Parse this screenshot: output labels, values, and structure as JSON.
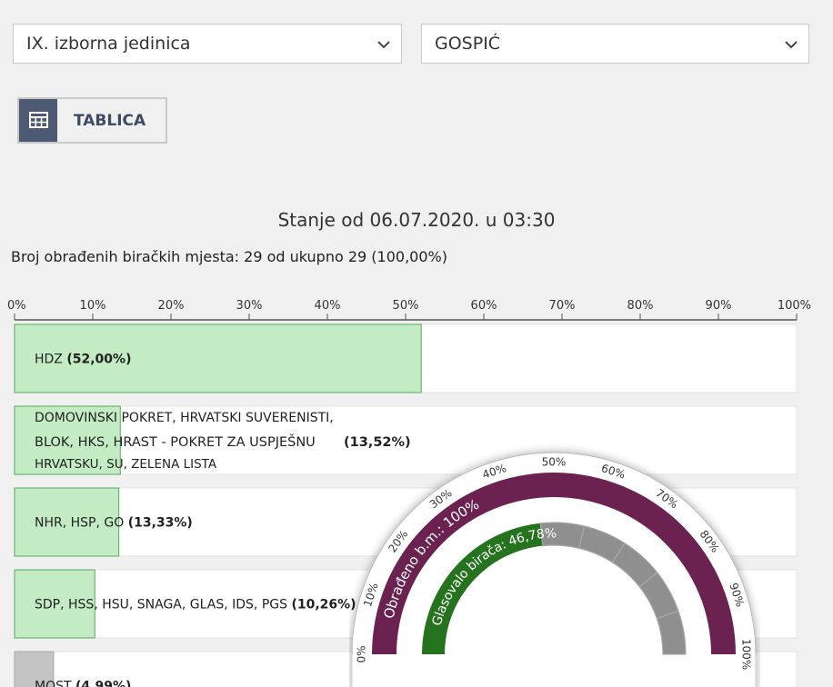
{
  "filters": {
    "constituency": "IX. izborna jedinica",
    "municipality": "GOSPIĆ"
  },
  "toolbar": {
    "table_label": "TABLICA"
  },
  "status_text": "Stanje od 06.07.2020. u 03:30",
  "processed_text": "Broj obrađenih biračkih mjesta: 29 od ukupno 29 (100,00%)",
  "chart_data": [
    {
      "type": "bar",
      "orientation": "horizontal",
      "xlim": [
        0,
        100
      ],
      "ticks": [
        "0%",
        "10%",
        "20%",
        "30%",
        "40%",
        "50%",
        "60%",
        "70%",
        "80%",
        "90%",
        "100%"
      ],
      "bar_color": "#c3ebc4",
      "other_color": "#c4c4c4",
      "bars": [
        {
          "lines": [
            "HDZ"
          ],
          "pct_label": "(52,00%)",
          "value": 52.0
        },
        {
          "lines": [
            "DOMOVINSKI POKRET, HRVATSKI SUVERENISTI,",
            "BLOK, HKS, HRAST - POKRET ZA USPJEŠNU",
            "HRVATSKU, SU, ZELENA LISTA"
          ],
          "pct_label": "(13,52%)",
          "value": 13.52
        },
        {
          "lines": [
            "NHR, HSP, GO"
          ],
          "pct_label": "(13,33%)",
          "value": 13.33
        },
        {
          "lines": [
            "SDP, HSS, HSU, SNAGA, GLAS, IDS, PGS"
          ],
          "pct_label": "(10,26%)",
          "value": 10.26
        },
        {
          "lines": [
            "MOST"
          ],
          "pct_label": "(4,99%)",
          "value": 4.99,
          "muted": true
        }
      ]
    },
    {
      "type": "gauge",
      "outer": {
        "label": "Obrađeno b.m.: 100%",
        "value": 100,
        "color": "#6b2250"
      },
      "inner": {
        "label": "Glasovalo birača: 46,78%",
        "value": 46.78,
        "color": "#26731f",
        "rest_color": "#8f8f8f"
      },
      "ticks": [
        "0%",
        "10%",
        "20%",
        "30%",
        "40%",
        "50%",
        "60%",
        "70%",
        "80%",
        "90%",
        "100%"
      ]
    }
  ]
}
